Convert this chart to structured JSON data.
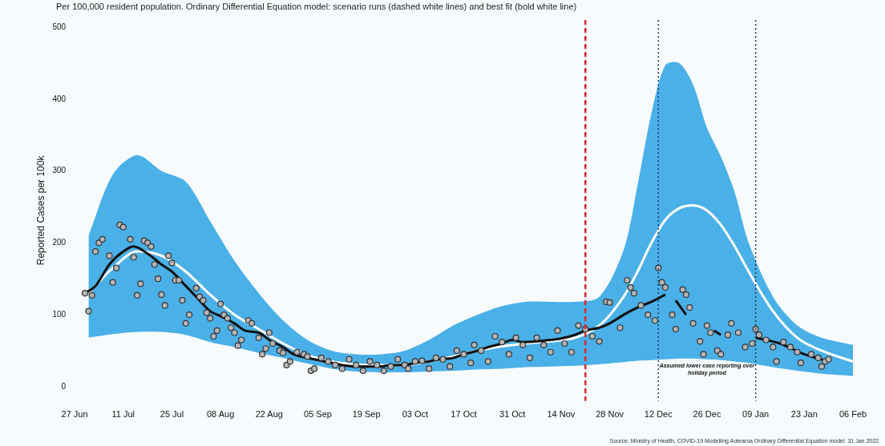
{
  "chart_data": {
    "type": "line",
    "title": "Per 100,000 resident population. Ordinary Differential Equation model: scenario runs (dashed white lines) and best fit (bold white line)",
    "ylabel": "Reported Cases per 100k",
    "xlim": [
      "2021-06-27",
      "2022-02-06"
    ],
    "ylim": [
      -20,
      510
    ],
    "xticks": [
      {
        "value": "2021-06-27",
        "label": "27 Jun"
      },
      {
        "value": "2021-07-11",
        "label": "11 Jul"
      },
      {
        "value": "2021-07-25",
        "label": "25 Jul"
      },
      {
        "value": "2021-08-08",
        "label": "08 Aug"
      },
      {
        "value": "2021-08-22",
        "label": "22 Aug"
      },
      {
        "value": "2021-09-05",
        "label": "05 Sep"
      },
      {
        "value": "2021-09-19",
        "label": "19 Sep"
      },
      {
        "value": "2021-10-03",
        "label": "03 Oct"
      },
      {
        "value": "2021-10-17",
        "label": "17 Oct"
      },
      {
        "value": "2021-10-31",
        "label": "31 Oct"
      },
      {
        "value": "2021-11-14",
        "label": "14 Nov"
      },
      {
        "value": "2021-11-28",
        "label": "28 Nov"
      },
      {
        "value": "2021-12-12",
        "label": "12 Dec"
      },
      {
        "value": "2021-12-26",
        "label": "26 Dec"
      },
      {
        "value": "2022-01-09",
        "label": "09 Jan"
      },
      {
        "value": "2022-01-23",
        "label": "23 Jan"
      },
      {
        "value": "2022-02-06",
        "label": "06 Feb"
      }
    ],
    "yticks": [
      0,
      100,
      200,
      300,
      400,
      500
    ],
    "grid": false,
    "legend": false,
    "series": [
      {
        "type": "line",
        "color": "#ffffff",
        "marker": "none",
        "x": [
          "2021-07-01",
          "2021-07-08",
          "2021-07-15",
          "2021-07-22",
          "2021-07-29",
          "2021-08-05",
          "2021-08-12",
          "2021-08-19",
          "2021-08-26",
          "2021-09-02",
          "2021-09-09",
          "2021-09-16",
          "2021-09-23",
          "2021-09-30",
          "2021-10-07",
          "2021-10-14",
          "2021-10-21",
          "2021-10-28",
          "2021-11-04",
          "2021-11-11",
          "2021-11-18",
          "2021-11-25",
          "2021-12-02",
          "2021-12-06",
          "2021-12-10",
          "2021-12-14",
          "2021-12-18",
          "2021-12-22",
          "2021-12-26",
          "2021-12-30",
          "2022-01-03",
          "2022-01-07",
          "2022-01-14",
          "2022-01-21",
          "2022-01-28",
          "2022-02-06"
        ],
        "values": [
          130,
          165,
          188,
          182,
          160,
          128,
          100,
          80,
          60,
          44,
          35,
          31,
          30,
          30,
          35,
          42,
          50,
          56,
          60,
          63,
          68,
          85,
          125,
          160,
          200,
          232,
          248,
          252,
          245,
          225,
          195,
          160,
          105,
          68,
          50,
          35
        ],
        "upper": [
          210,
          295,
          322,
          300,
          285,
          230,
          175,
          130,
          92,
          65,
          50,
          45,
          45,
          50,
          65,
          85,
          100,
          112,
          118,
          118,
          118,
          125,
          190,
          280,
          380,
          447,
          450,
          420,
          360,
          320,
          270,
          200,
          125,
          85,
          68,
          58
        ],
        "lower": [
          68,
          73,
          76,
          76,
          72,
          62,
          55,
          47,
          40,
          32,
          25,
          21,
          20,
          20,
          21,
          22,
          24,
          25,
          27,
          28,
          29,
          31,
          34,
          36,
          37,
          38,
          39,
          39,
          38,
          37,
          35,
          33,
          27,
          22,
          18,
          15
        ]
      },
      {
        "type": "line",
        "color": "#111111",
        "marker": "none",
        "x": [
          "2021-06-30",
          "2021-07-03",
          "2021-07-07",
          "2021-07-11",
          "2021-07-14",
          "2021-07-18",
          "2021-07-22",
          "2021-07-25",
          "2021-07-29",
          "2021-08-01",
          "2021-08-05",
          "2021-08-08",
          "2021-08-12",
          "2021-08-15",
          "2021-08-19",
          "2021-08-22",
          "2021-08-26",
          "2021-08-29",
          "2021-09-02",
          "2021-09-05",
          "2021-09-09",
          "2021-09-12",
          "2021-09-16",
          "2021-09-19",
          "2021-09-23",
          "2021-09-26",
          "2021-09-30",
          "2021-10-03",
          "2021-10-07",
          "2021-10-10",
          "2021-10-14",
          "2021-10-17",
          "2021-10-21",
          "2021-10-24",
          "2021-10-28",
          "2021-10-31",
          "2021-11-03",
          "2021-11-07",
          "2021-11-11",
          "2021-11-14",
          "2021-11-18",
          "2021-11-21",
          "2021-11-25",
          "2021-11-28",
          "2021-12-02",
          "2021-12-06",
          "2021-12-10",
          "2021-12-14",
          "2021-12-15",
          "2021-12-17",
          "2021-12-20",
          "2021-12-24",
          "2021-12-28",
          "2021-12-30",
          "2022-01-04",
          "2022-01-09",
          "2022-01-16",
          "2022-01-23",
          "2022-01-30"
        ],
        "values": [
          130,
          140,
          170,
          188,
          195,
          185,
          170,
          160,
          140,
          125,
          105,
          98,
          88,
          78,
          75,
          65,
          55,
          45,
          40,
          37,
          33,
          30,
          28,
          28,
          28,
          30,
          30,
          33,
          35,
          38,
          40,
          45,
          50,
          55,
          60,
          65,
          62,
          63,
          65,
          67,
          72,
          78,
          82,
          88,
          100,
          110,
          118,
          128,
          null,
          120,
          100,
          null,
          78,
          72,
          null,
          68,
          60,
          45,
          35
        ]
      },
      {
        "type": "scatter",
        "color": "#b5b5b5",
        "marker": "circle",
        "x": [
          "2021-06-30",
          "2021-07-01",
          "2021-07-02",
          "2021-07-03",
          "2021-07-04",
          "2021-07-05",
          "2021-07-07",
          "2021-07-08",
          "2021-07-09",
          "2021-07-10",
          "2021-07-11",
          "2021-07-13",
          "2021-07-14",
          "2021-07-15",
          "2021-07-16",
          "2021-07-17",
          "2021-07-18",
          "2021-07-19",
          "2021-07-20",
          "2021-07-21",
          "2021-07-22",
          "2021-07-23",
          "2021-07-24",
          "2021-07-25",
          "2021-07-26",
          "2021-07-27",
          "2021-07-28",
          "2021-07-29",
          "2021-07-30",
          "2021-08-01",
          "2021-08-02",
          "2021-08-03",
          "2021-08-04",
          "2021-08-05",
          "2021-08-06",
          "2021-08-07",
          "2021-08-08",
          "2021-08-09",
          "2021-08-10",
          "2021-08-11",
          "2021-08-12",
          "2021-08-13",
          "2021-08-14",
          "2021-08-16",
          "2021-08-17",
          "2021-08-19",
          "2021-08-20",
          "2021-08-21",
          "2021-08-22",
          "2021-08-23",
          "2021-08-25",
          "2021-08-26",
          "2021-08-27",
          "2021-08-28",
          "2021-08-30",
          "2021-09-01",
          "2021-09-02",
          "2021-09-03",
          "2021-09-04",
          "2021-09-06",
          "2021-09-08",
          "2021-09-10",
          "2021-09-12",
          "2021-09-14",
          "2021-09-16",
          "2021-09-18",
          "2021-09-20",
          "2021-09-22",
          "2021-09-24",
          "2021-09-26",
          "2021-09-28",
          "2021-09-30",
          "2021-10-01",
          "2021-10-03",
          "2021-10-05",
          "2021-10-07",
          "2021-10-09",
          "2021-10-11",
          "2021-10-13",
          "2021-10-15",
          "2021-10-17",
          "2021-10-19",
          "2021-10-20",
          "2021-10-22",
          "2021-10-24",
          "2021-10-26",
          "2021-10-28",
          "2021-10-30",
          "2021-11-01",
          "2021-11-03",
          "2021-11-05",
          "2021-11-07",
          "2021-11-09",
          "2021-11-11",
          "2021-11-13",
          "2021-11-15",
          "2021-11-17",
          "2021-11-19",
          "2021-11-21",
          "2021-11-23",
          "2021-11-25",
          "2021-11-27",
          "2021-11-28",
          "2021-12-01",
          "2021-12-03",
          "2021-12-04",
          "2021-12-05",
          "2021-12-07",
          "2021-12-09",
          "2021-12-11",
          "2021-12-12",
          "2021-12-13",
          "2021-12-14",
          "2021-12-16",
          "2021-12-17",
          "2021-12-19",
          "2021-12-20",
          "2021-12-21",
          "2021-12-22",
          "2021-12-24",
          "2021-12-25",
          "2021-12-26",
          "2021-12-27",
          "2021-12-29",
          "2021-12-30",
          "2022-01-01",
          "2022-01-02",
          "2022-01-04",
          "2022-01-06",
          "2022-01-08",
          "2022-01-09",
          "2022-01-10",
          "2022-01-12",
          "2022-01-14",
          "2022-01-15",
          "2022-01-17",
          "2022-01-19",
          "2022-01-21",
          "2022-01-22",
          "2022-01-25",
          "2022-01-27",
          "2022-01-28",
          "2022-01-29",
          "2022-01-30"
        ],
        "values": [
          130,
          105,
          127,
          188,
          200,
          205,
          182,
          145,
          165,
          225,
          222,
          205,
          180,
          127,
          143,
          203,
          200,
          195,
          170,
          150,
          128,
          113,
          182,
          172,
          148,
          148,
          120,
          88,
          100,
          137,
          125,
          120,
          103,
          95,
          70,
          78,
          115,
          100,
          95,
          82,
          75,
          57,
          65,
          92,
          88,
          68,
          45,
          53,
          75,
          60,
          50,
          47,
          30,
          35,
          48,
          45,
          42,
          22,
          25,
          40,
          35,
          30,
          25,
          38,
          30,
          22,
          35,
          30,
          22,
          28,
          38,
          30,
          25,
          35,
          36,
          25,
          40,
          38,
          28,
          50,
          45,
          33,
          58,
          50,
          35,
          70,
          62,
          45,
          68,
          58,
          40,
          68,
          58,
          48,
          78,
          60,
          48,
          85,
          80,
          70,
          63,
          118,
          117,
          82,
          148,
          138,
          130,
          113,
          100,
          92,
          165,
          145,
          138,
          100,
          80,
          135,
          128,
          110,
          88,
          63,
          45,
          85,
          75,
          50,
          45,
          72,
          88,
          75,
          55,
          60,
          80,
          72,
          65,
          55,
          35,
          62,
          55,
          48,
          33,
          45,
          40,
          28,
          35,
          38
        ]
      }
    ],
    "ref_lines": [
      {
        "axis": "x",
        "value": "2021-11-21",
        "color": "#e0262b",
        "line_style": "dashed"
      },
      {
        "axis": "x",
        "value": "2021-12-12",
        "color": "#1f3b66",
        "line_style": "dotted"
      },
      {
        "axis": "x",
        "value": "2022-01-09",
        "color": "#333333",
        "line_style": "dotted"
      }
    ],
    "annotations": [
      "Assumed lower case reporting over holiday period",
      "Source: Ministry of Health, COVID-19 Modelling Aotearoa Ordinary Differential Equation model. 31 Jan 2022"
    ]
  }
}
